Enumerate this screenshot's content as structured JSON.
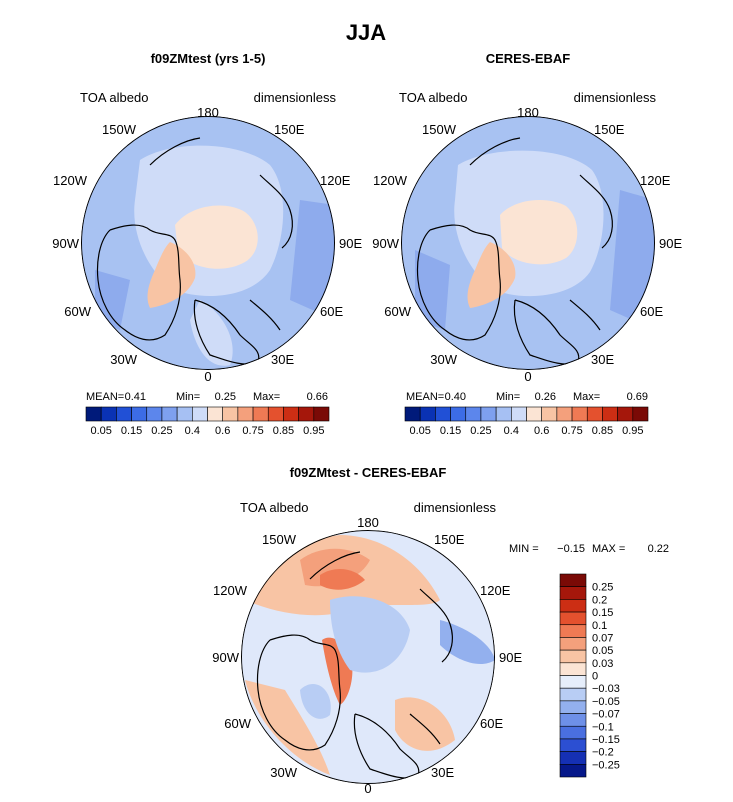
{
  "title": "JJA",
  "panels": [
    {
      "id": "model",
      "subtitle": "f09ZMtest (yrs 1-5)",
      "left_label": "TOA albedo",
      "right_label": "dimensionless",
      "lon_labels": [
        "180",
        "150W",
        "150E",
        "120W",
        "120E",
        "90W",
        "90E",
        "60W",
        "60E",
        "30W",
        "30E",
        "0"
      ],
      "stats": {
        "mean_label": "MEAN=",
        "mean": "0.41",
        "min_label": "Min=",
        "min": "0.25",
        "max_label": "Max=",
        "max": "0.66"
      },
      "colorbar_ticks": [
        "0.05",
        "0.15",
        "0.25",
        "0.4",
        "0.6",
        "0.75",
        "0.85",
        "0.95"
      ]
    },
    {
      "id": "obs",
      "subtitle": "CERES-EBAF",
      "left_label": "TOA albedo",
      "right_label": "dimensionless",
      "lon_labels": [
        "180",
        "150W",
        "150E",
        "120W",
        "120E",
        "90W",
        "90E",
        "60W",
        "60E",
        "30W",
        "30E",
        "0"
      ],
      "stats": {
        "mean_label": "MEAN=",
        "mean": "0.40",
        "min_label": "Min=",
        "min": "0.26",
        "max_label": "Max=",
        "max": "0.69"
      },
      "colorbar_ticks": [
        "0.05",
        "0.15",
        "0.25",
        "0.4",
        "0.6",
        "0.75",
        "0.85",
        "0.95"
      ]
    },
    {
      "id": "diff",
      "subtitle": "f09ZMtest - CERES-EBAF",
      "left_label": "TOA albedo",
      "right_label": "dimensionless",
      "lon_labels": [
        "180",
        "150W",
        "150E",
        "120W",
        "120E",
        "90W",
        "90E",
        "60W",
        "60E",
        "30W",
        "30E",
        "0"
      ],
      "stats": {
        "min_label": "MIN =",
        "min": "−0.15",
        "max_label": "MAX =",
        "max": "0.22"
      },
      "colorbar_ticks": [
        "0.25",
        "0.2",
        "0.15",
        "0.1",
        "0.07",
        "0.05",
        "0.03",
        "0",
        "−0.03",
        "−0.05",
        "−0.07",
        "−0.1",
        "−0.15",
        "−0.2",
        "−0.25"
      ]
    }
  ],
  "chart_data": [
    {
      "type": "heatmap",
      "projection": "north-polar-stereographic",
      "title": "f09ZMtest (yrs 1-5)",
      "variable": "TOA albedo",
      "units": "dimensionless",
      "season": "JJA",
      "mean": 0.41,
      "min": 0.25,
      "max": 0.66,
      "levels": [
        0.05,
        0.15,
        0.25,
        0.4,
        0.6,
        0.75,
        0.85,
        0.95
      ],
      "colors": [
        "#001a7a",
        "#0a32b4",
        "#2150d6",
        "#3c6ce6",
        "#5c86ec",
        "#7ea0ef",
        "#a6c0f3",
        "#cfdcf8",
        "#fbe4d4",
        "#f8c4a4",
        "#f4a07c",
        "#ef7a54",
        "#e4512e",
        "#cc2e14",
        "#a5170b",
        "#7a0a06"
      ],
      "legend": "bottom"
    },
    {
      "type": "heatmap",
      "projection": "north-polar-stereographic",
      "title": "CERES-EBAF",
      "variable": "TOA albedo",
      "units": "dimensionless",
      "season": "JJA",
      "mean": 0.4,
      "min": 0.26,
      "max": 0.69,
      "levels": [
        0.05,
        0.15,
        0.25,
        0.4,
        0.6,
        0.75,
        0.85,
        0.95
      ],
      "colors": [
        "#001a7a",
        "#0a32b4",
        "#2150d6",
        "#3c6ce6",
        "#5c86ec",
        "#7ea0ef",
        "#a6c0f3",
        "#cfdcf8",
        "#fbe4d4",
        "#f8c4a4",
        "#f4a07c",
        "#ef7a54",
        "#e4512e",
        "#cc2e14",
        "#a5170b",
        "#7a0a06"
      ],
      "legend": "bottom"
    },
    {
      "type": "heatmap",
      "projection": "north-polar-stereographic",
      "title": "f09ZMtest - CERES-EBAF",
      "variable": "TOA albedo",
      "units": "dimensionless",
      "season": "JJA",
      "min": -0.15,
      "max": 0.22,
      "levels": [
        -0.25,
        -0.2,
        -0.15,
        -0.1,
        -0.07,
        -0.05,
        -0.03,
        0,
        0.03,
        0.05,
        0.07,
        0.1,
        0.15,
        0.2,
        0.25
      ],
      "colors": [
        "#7a0a06",
        "#a5170b",
        "#cc2e14",
        "#e4512e",
        "#ef7a54",
        "#f4a07c",
        "#f8c4a4",
        "#fbe4d4",
        "#e6eefb",
        "#b8cdf4",
        "#93b0ee",
        "#6e90e8",
        "#4a6fe0",
        "#2c4fd2",
        "#1530b4",
        "#06188a"
      ],
      "legend": "right"
    }
  ]
}
